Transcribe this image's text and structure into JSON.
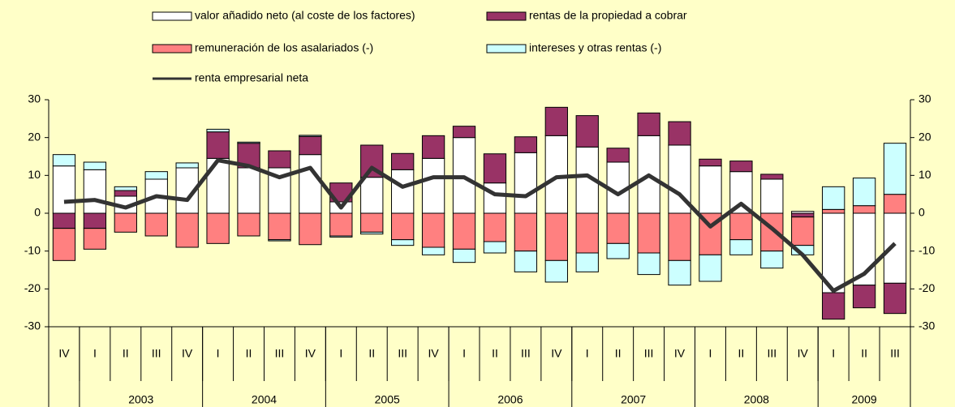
{
  "chart_data": {
    "type": "bar",
    "categories": [
      "IV",
      "I",
      "II",
      "III",
      "IV",
      "I",
      "II",
      "III",
      "IV",
      "I",
      "II",
      "III",
      "IV",
      "I",
      "II",
      "III",
      "IV",
      "I",
      "II",
      "III",
      "IV",
      "I",
      "II",
      "III",
      "IV",
      "I",
      "II",
      "III"
    ],
    "years": [
      null,
      "2003",
      "2004",
      "2005",
      "2006",
      "2007",
      "2008",
      "2009"
    ],
    "series": [
      {
        "name": "valor añadido neto (al coste de los factores)",
        "color": "#ffffff",
        "type": "bar",
        "values": [
          12.5,
          11.5,
          4.5,
          9,
          12,
          14.5,
          12,
          12,
          15.5,
          3,
          9.5,
          11.5,
          14.5,
          20,
          8,
          16,
          20.5,
          17.5,
          13.5,
          20.5,
          18,
          12.5,
          11,
          9,
          0.5,
          -21,
          -19,
          -18.5
        ]
      },
      {
        "name": "rentas de la propiedad a cobrar",
        "color": "#993366",
        "type": "bar",
        "values": [
          -4,
          -4,
          1.5,
          0,
          0,
          7,
          6.5,
          4.5,
          4.8,
          5,
          8.5,
          4.3,
          6,
          3,
          7.7,
          4.2,
          7.5,
          8.3,
          3.7,
          6,
          6.2,
          1.8,
          2.8,
          1.3,
          -1,
          -7,
          -6,
          -8
        ]
      },
      {
        "name": "remuneración de los asalariados (-)",
        "color": "#ff8080",
        "type": "bar",
        "values": [
          -8.5,
          -5.5,
          -5,
          -6,
          -9,
          -8,
          -6,
          -7,
          -8.3,
          -6,
          -5,
          -7,
          -9,
          -9.5,
          -7.5,
          -10,
          -12.5,
          -10.5,
          -8,
          -10.5,
          -12.5,
          -11,
          -7,
          -10,
          -7.5,
          1,
          2,
          5
        ]
      },
      {
        "name": "intereses y otras rentas (-)",
        "color": "#ccffff",
        "type": "bar",
        "values": [
          3,
          2,
          1,
          2,
          1.3,
          0.7,
          0.3,
          -0.3,
          0.3,
          -0.3,
          -0.5,
          -1.5,
          -2,
          -3.5,
          -3,
          -5.5,
          -5.7,
          -5,
          -4,
          -5.7,
          -6.5,
          -7,
          -4,
          -4.5,
          -2.5,
          6,
          7.3,
          13.5
        ]
      },
      {
        "name": "renta empresarial neta",
        "color": "#333333",
        "type": "line",
        "values": [
          3,
          3.5,
          1.5,
          4.5,
          3.5,
          14,
          12.5,
          9.5,
          12,
          1.5,
          12,
          7,
          9.5,
          9.5,
          5,
          4.5,
          9.5,
          10,
          5,
          10,
          5,
          -3.5,
          2.5,
          -4,
          -11,
          -20.5,
          -16,
          -8
        ]
      }
    ],
    "ylim": [
      -30,
      30
    ],
    "yticks": [
      -30,
      -20,
      -10,
      0,
      10,
      20,
      30
    ],
    "y2lim": [
      -30,
      30
    ],
    "y2ticks": [
      -30,
      -20,
      -10,
      0,
      10,
      20,
      30
    ]
  }
}
